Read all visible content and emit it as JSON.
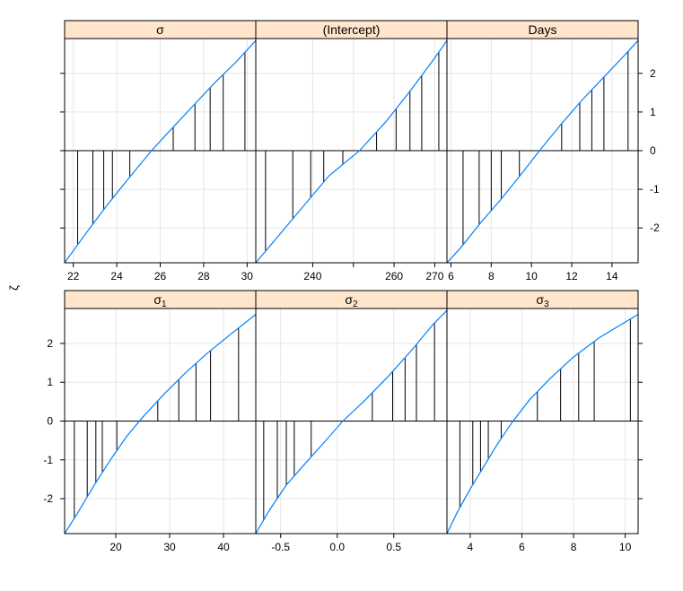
{
  "chart_data": {
    "type": "line",
    "ylabel": "ζ",
    "ylim": [
      -2.9,
      2.9
    ],
    "y_ticks": [
      -2,
      -1,
      0,
      1,
      2
    ],
    "grid": true,
    "layout": "2 rows x 3 columns",
    "curve_color": "#0080ff",
    "strip_color": "#ffe5cc",
    "panels": [
      {
        "title": "σ",
        "sub": "",
        "xlim": [
          21.6,
          30.4
        ],
        "x_ticks": [
          22,
          24,
          26,
          28,
          30
        ],
        "x_tick_labels": [
          "22",
          "24",
          "26",
          "28",
          "30"
        ],
        "curve_x": [
          21.6,
          22.5,
          23.5,
          24.5,
          25.6,
          26.5,
          27.5,
          28.5,
          29.5,
          30.4
        ],
        "curve_y": [
          -2.9,
          -2.2,
          -1.45,
          -0.75,
          0.0,
          0.55,
          1.15,
          1.75,
          2.3,
          2.85
        ],
        "spikes_x": [
          22.2,
          22.9,
          23.4,
          23.8,
          24.6,
          26.6,
          27.6,
          28.3,
          28.9,
          29.9
        ]
      },
      {
        "title": "(Intercept)",
        "sub": "",
        "xlim": [
          226,
          273
        ],
        "x_ticks": [
          240,
          250,
          260,
          270
        ],
        "x_tick_labels": [
          "240",
          "",
          "260",
          "270"
        ],
        "curve_x": [
          226,
          232,
          238,
          244,
          251.5,
          258,
          264,
          270,
          273
        ],
        "curve_y": [
          -2.9,
          -2.15,
          -1.4,
          -0.65,
          0.0,
          0.75,
          1.55,
          2.4,
          2.85
        ],
        "spikes_x": [
          228.4,
          235.1,
          239.5,
          242.7,
          247.4,
          255.7,
          260.5,
          263.9,
          266.8,
          271.0
        ]
      },
      {
        "title": "Days",
        "sub": "",
        "xlim": [
          5.8,
          15.3
        ],
        "x_ticks": [
          6,
          8,
          10,
          12,
          14
        ],
        "x_tick_labels": [
          "6",
          "8",
          "10",
          "12",
          "14"
        ],
        "curve_x": [
          5.8,
          6.5,
          7.5,
          8.5,
          9.5,
          10.4,
          11.5,
          12.5,
          13.5,
          14.5,
          15.3
        ],
        "curve_y": [
          -2.9,
          -2.5,
          -1.85,
          -1.25,
          -0.6,
          0.0,
          0.7,
          1.3,
          1.85,
          2.4,
          2.85
        ],
        "spikes_x": [
          6.6,
          7.4,
          8.0,
          8.5,
          9.4,
          11.5,
          12.4,
          13.0,
          13.6,
          14.8
        ]
      },
      {
        "title": "σ",
        "sub": "1",
        "xlim": [
          10.5,
          46
        ],
        "x_ticks": [
          20,
          30,
          40
        ],
        "x_tick_labels": [
          "20",
          "30",
          "40"
        ],
        "curve_x": [
          10.5,
          13,
          16,
          19,
          22,
          25,
          29,
          33,
          37,
          41,
          46
        ],
        "curve_y": [
          -2.9,
          -2.35,
          -1.65,
          -1.0,
          -0.4,
          0.1,
          0.7,
          1.25,
          1.75,
          2.2,
          2.75
        ],
        "spikes_x": [
          12.3,
          14.7,
          16.3,
          17.5,
          20.2,
          27.8,
          31.7,
          34.9,
          37.6,
          42.8
        ]
      },
      {
        "title": "σ",
        "sub": "2",
        "xlim": [
          -0.72,
          0.97
        ],
        "x_ticks": [
          -0.5,
          0.0,
          0.5
        ],
        "x_tick_labels": [
          "-0.5",
          "0.0",
          "0.5"
        ],
        "curve_x": [
          -0.72,
          -0.6,
          -0.45,
          -0.3,
          -0.1,
          0.05,
          0.25,
          0.45,
          0.65,
          0.85,
          0.97
        ],
        "curve_y": [
          -2.9,
          -2.3,
          -1.65,
          -1.15,
          -0.5,
          0.0,
          0.55,
          1.15,
          1.8,
          2.5,
          2.85
        ],
        "spikes_x": [
          -0.65,
          -0.53,
          -0.45,
          -0.38,
          -0.23,
          0.31,
          0.49,
          0.6,
          0.7,
          0.86
        ]
      },
      {
        "title": "σ",
        "sub": "3",
        "xlim": [
          3.1,
          10.5
        ],
        "x_ticks": [
          4,
          6,
          8,
          10
        ],
        "x_tick_labels": [
          "4",
          "6",
          "8",
          "10"
        ],
        "curve_x": [
          3.1,
          3.5,
          4.0,
          4.5,
          5.0,
          5.6,
          6.3,
          7.1,
          8.0,
          9.0,
          10.5
        ],
        "curve_y": [
          -2.9,
          -2.35,
          -1.75,
          -1.2,
          -0.65,
          -0.05,
          0.55,
          1.1,
          1.65,
          2.15,
          2.75
        ],
        "spikes_x": [
          3.6,
          4.1,
          4.4,
          4.7,
          5.2,
          6.6,
          7.5,
          8.2,
          8.8,
          10.2
        ]
      }
    ]
  }
}
